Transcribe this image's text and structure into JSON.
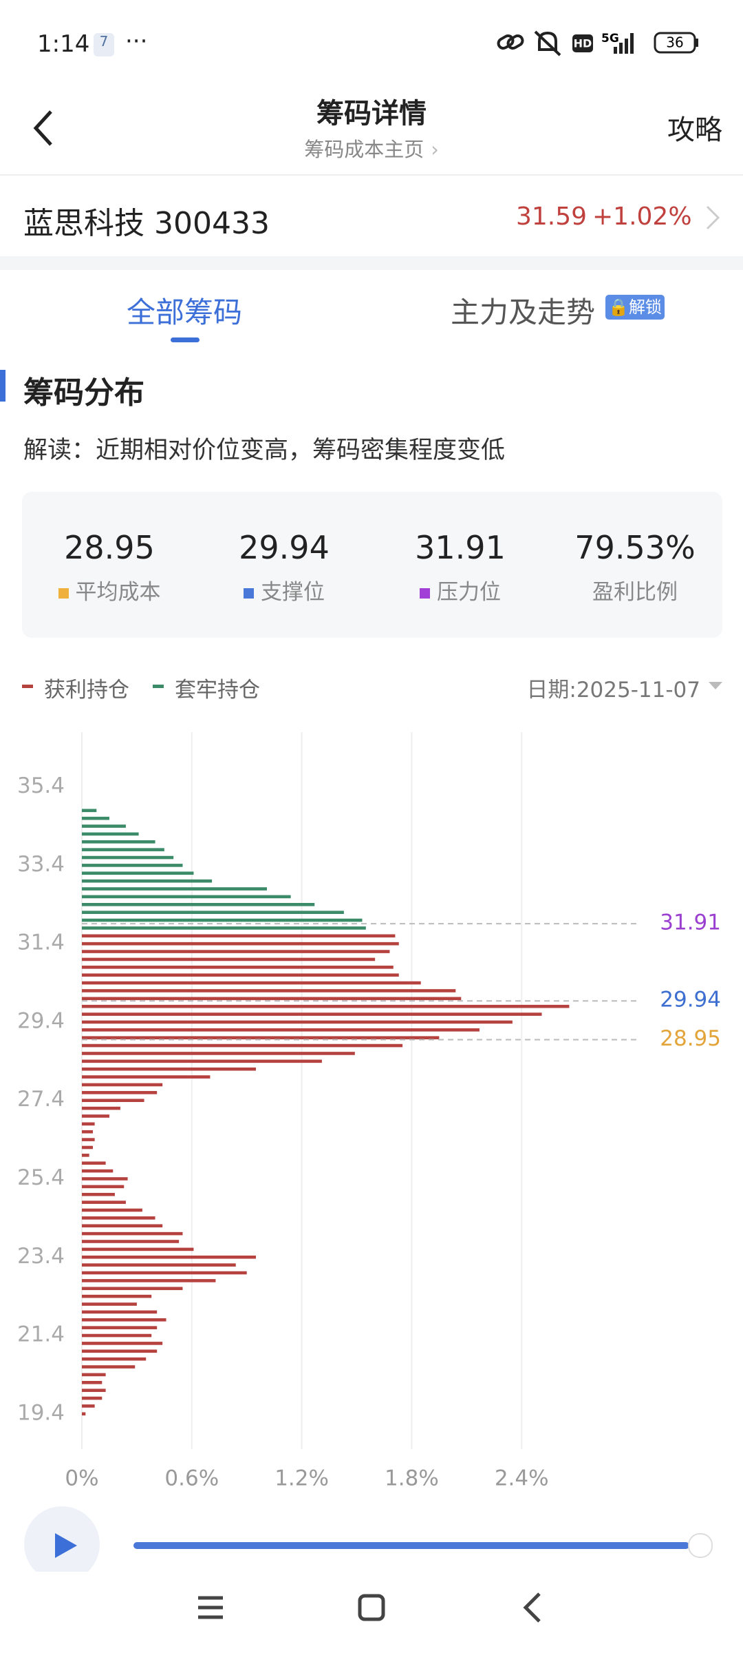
{
  "status": {
    "time": "1:14",
    "notice": "7",
    "network": "5G",
    "hd": "HD",
    "battery": "36"
  },
  "header": {
    "title": "筹码详情",
    "subtitle": "筹码成本主页",
    "action": "攻略"
  },
  "stock": {
    "name": "蓝思科技",
    "code": "300433",
    "price": "31.59",
    "change": "+1.02%"
  },
  "tabs": [
    {
      "label": "全部筹码"
    },
    {
      "label": "主力及走势",
      "badge": "解锁"
    }
  ],
  "section": {
    "title": "筹码分布",
    "note": "解读：近期相对价位变高，筹码密集程度变低"
  },
  "stats": [
    {
      "value": "28.95",
      "label": "平均成本",
      "color": "#f0b03c"
    },
    {
      "value": "29.94",
      "label": "支撑位",
      "color": "#4a78d8"
    },
    {
      "value": "31.91",
      "label": "压力位",
      "color": "#a23fd6"
    },
    {
      "value": "79.53%",
      "label": "盈利比例"
    }
  ],
  "date": "日期:2025-11-07",
  "chart_data": {
    "type": "hbar",
    "series": [
      {
        "name": "获利持仓",
        "color": "#b5423f",
        "prices": [
          31.6,
          31.4,
          31.2,
          31.0,
          30.8,
          30.6,
          30.4,
          30.2,
          30.0,
          29.8,
          29.6,
          29.4,
          29.2,
          29.0,
          28.8,
          28.6,
          28.4,
          28.2,
          28.0,
          27.8,
          27.6,
          27.4,
          27.2,
          27.0,
          26.8,
          26.6,
          26.4,
          26.2,
          26.0,
          25.8,
          25.6,
          25.4,
          25.2,
          25.0,
          24.8,
          24.6,
          24.4,
          24.2,
          24.0,
          23.8,
          23.6,
          23.4,
          23.2,
          23.0,
          22.8,
          22.6,
          22.4,
          22.2,
          22.0,
          21.8,
          21.6,
          21.4,
          21.2,
          21.0,
          20.8,
          20.6,
          20.4,
          20.2,
          20.0,
          19.8,
          19.6,
          19.4
        ],
        "values": [
          1.71,
          1.73,
          1.68,
          1.6,
          1.7,
          1.73,
          1.85,
          2.04,
          2.07,
          2.66,
          2.51,
          2.35,
          2.17,
          1.95,
          1.75,
          1.49,
          1.31,
          0.95,
          0.7,
          0.44,
          0.41,
          0.34,
          0.21,
          0.15,
          0.07,
          0.06,
          0.07,
          0.06,
          0.04,
          0.13,
          0.17,
          0.25,
          0.23,
          0.18,
          0.24,
          0.33,
          0.4,
          0.44,
          0.55,
          0.53,
          0.61,
          0.95,
          0.84,
          0.9,
          0.73,
          0.55,
          0.38,
          0.3,
          0.41,
          0.46,
          0.41,
          0.38,
          0.44,
          0.41,
          0.35,
          0.29,
          0.13,
          0.11,
          0.13,
          0.11,
          0.07,
          0.02
        ]
      },
      {
        "name": "套牢持仓",
        "color": "#3b8a68",
        "prices": [
          34.8,
          34.6,
          34.4,
          34.2,
          34.0,
          33.8,
          33.6,
          33.4,
          33.2,
          33.0,
          32.8,
          32.6,
          32.4,
          32.2,
          32.0,
          31.8
        ],
        "values": [
          0.08,
          0.15,
          0.24,
          0.31,
          0.4,
          0.45,
          0.5,
          0.55,
          0.61,
          0.71,
          1.01,
          1.14,
          1.27,
          1.43,
          1.53,
          1.55
        ]
      }
    ],
    "reference_lines": [
      {
        "value": 31.91,
        "color": "#9a3fd0"
      },
      {
        "value": 29.94,
        "color": "#3d6fd0"
      },
      {
        "value": 28.95,
        "color": "#e3a43a"
      }
    ],
    "ylim": [
      18.5,
      36.8
    ],
    "yticks": [
      19.4,
      21.4,
      23.4,
      25.4,
      27.4,
      29.4,
      31.4,
      33.4,
      35.4
    ],
    "xlim": [
      0,
      3.0
    ],
    "xticks": [
      {
        "value": 0,
        "label": "0%"
      },
      {
        "value": 0.6,
        "label": "0.6%"
      },
      {
        "value": 1.2,
        "label": "1.2%"
      },
      {
        "value": 1.8,
        "label": "1.8%"
      },
      {
        "value": 2.4,
        "label": "2.4%"
      }
    ],
    "grid": true
  }
}
